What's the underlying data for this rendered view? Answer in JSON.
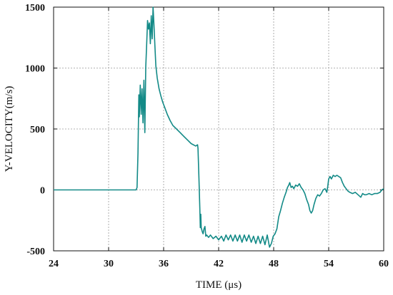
{
  "chart_data": {
    "type": "line",
    "title": "",
    "xlabel": "TIME (μs)",
    "ylabel": "Y-VELOCITY(m/s)",
    "xlim": [
      24,
      60
    ],
    "ylim": [
      -500,
      1500
    ],
    "xticks": [
      24,
      30,
      36,
      42,
      48,
      54,
      60
    ],
    "yticks": [
      -500,
      0,
      500,
      1000,
      1500
    ],
    "xtick_labels": [
      "24",
      "30",
      "36",
      "42",
      "48",
      "54",
      "60"
    ],
    "ytick_labels": [
      "-500",
      "0",
      "500",
      "1000",
      "1500"
    ],
    "grid": true,
    "legend": "none",
    "series": [
      {
        "color": "#138a87",
        "x": [
          24,
          30,
          33.0,
          33.1,
          33.2,
          33.3,
          33.35,
          33.45,
          33.55,
          33.65,
          33.75,
          33.85,
          33.95,
          34.05,
          34.15,
          34.25,
          34.35,
          34.45,
          34.55,
          34.65,
          34.75,
          34.85,
          34.95,
          35.05,
          35.15,
          35.3,
          35.5,
          35.7,
          35.9,
          36.1,
          36.4,
          36.7,
          37.0,
          37.4,
          37.8,
          38.2,
          38.6,
          39.0,
          39.5,
          39.7,
          39.75,
          39.85,
          39.95,
          40.0,
          40.05,
          40.1,
          40.2,
          40.3,
          40.4,
          40.5,
          40.6,
          40.7,
          40.9,
          41.1,
          41.4,
          41.7,
          42.0,
          42.3,
          42.55,
          42.8,
          43.05,
          43.3,
          43.55,
          43.8,
          44.05,
          44.3,
          44.55,
          44.8,
          45.05,
          45.3,
          45.55,
          45.8,
          46.05,
          46.3,
          46.55,
          46.8,
          47.05,
          47.3,
          47.55,
          47.75,
          47.95,
          48.15,
          48.35,
          48.55,
          48.75,
          48.95,
          49.15,
          49.35,
          49.5,
          49.65,
          49.75,
          49.9,
          50.05,
          50.2,
          50.4,
          50.6,
          50.8,
          51.0,
          51.2,
          51.4,
          51.6,
          51.8,
          51.95,
          52.1,
          52.25,
          52.4,
          52.6,
          52.8,
          53.0,
          53.2,
          53.4,
          53.6,
          53.8,
          53.9,
          54.0,
          54.15,
          54.3,
          54.5,
          54.7,
          54.9,
          55.1,
          55.3,
          55.5,
          55.7,
          55.9,
          56.1,
          56.3,
          56.6,
          56.9,
          57.2,
          57.5,
          57.7,
          57.9,
          58.1,
          58.4,
          58.7,
          59.0,
          59.3,
          59.6,
          59.8,
          60.0
        ],
        "y": [
          0,
          0,
          0,
          20,
          300,
          780,
          600,
          860,
          620,
          830,
          550,
          900,
          470,
          1010,
          1200,
          1390,
          1320,
          1370,
          1200,
          1430,
          1240,
          1500,
          1350,
          1180,
          1020,
          920,
          830,
          770,
          720,
          680,
          620,
          570,
          530,
          500,
          470,
          440,
          410,
          380,
          360,
          370,
          340,
          100,
          -160,
          -310,
          -200,
          -310,
          -340,
          -360,
          -320,
          -300,
          -380,
          -370,
          -390,
          -370,
          -400,
          -380,
          -410,
          -380,
          -420,
          -370,
          -410,
          -370,
          -420,
          -370,
          -420,
          -370,
          -430,
          -370,
          -420,
          -370,
          -430,
          -380,
          -440,
          -380,
          -440,
          -380,
          -450,
          -370,
          -470,
          -440,
          -380,
          -360,
          -320,
          -220,
          -170,
          -110,
          -60,
          -20,
          20,
          40,
          60,
          20,
          30,
          10,
          40,
          30,
          50,
          20,
          0,
          -30,
          -80,
          -120,
          -170,
          -190,
          -170,
          -120,
          -70,
          -40,
          -50,
          -30,
          0,
          10,
          -20,
          30,
          90,
          110,
          90,
          120,
          110,
          120,
          110,
          100,
          60,
          30,
          10,
          -10,
          -20,
          -30,
          -20,
          -40,
          -60,
          -30,
          -40,
          -40,
          -30,
          -40,
          -30,
          -30,
          -20,
          0,
          10
        ]
      }
    ]
  }
}
